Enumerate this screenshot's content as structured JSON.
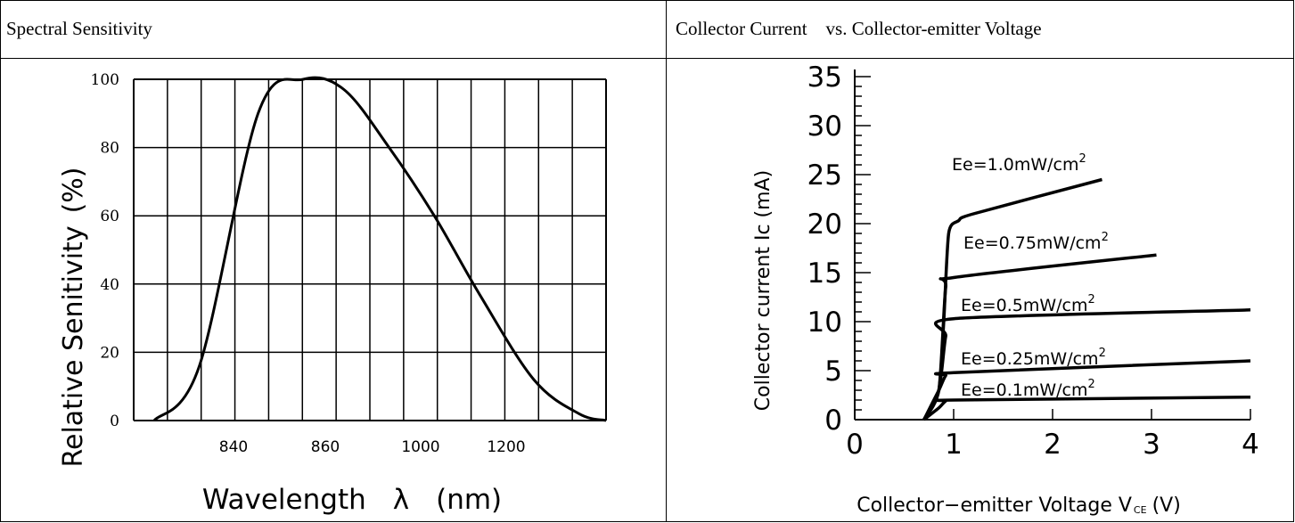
{
  "chart_data": [
    {
      "type": "line",
      "title": "Spectral Sensitivity",
      "xlabel": "Wavelength",
      "xlabel_symbol": "λ",
      "xlabel_unit": "(nm)",
      "ylabel": "Relative Senitivity",
      "ylabel_unit": "(%)",
      "ylim": [
        0,
        100
      ],
      "y_ticks": [
        0,
        20,
        40,
        60,
        80,
        100
      ],
      "x_tick_labels": [
        "840",
        "860",
        "1000",
        "1200"
      ],
      "grid": true,
      "series": [
        {
          "x": [
            0.0,
            0.1,
            0.23,
            0.33,
            0.42,
            0.52,
            0.62,
            0.72,
            0.84,
            0.94,
            1.0
          ],
          "y": [
            0,
            16,
            90,
            100,
            97,
            80,
            60,
            37,
            12,
            2,
            0
          ]
        }
      ]
    },
    {
      "type": "line",
      "title": "Collector Current    vs. Collector-emitter Voltage",
      "xlabel": "Collector−emitter Voltage V",
      "xlabel_sub": "CE",
      "xlabel_unit": "(V)",
      "ylabel": "Collector current Ic (mA)",
      "xlim": [
        0,
        4
      ],
      "ylim": [
        0,
        35
      ],
      "x_ticks": [
        0,
        1,
        2,
        3,
        4
      ],
      "y_ticks": [
        0,
        5,
        10,
        15,
        20,
        25,
        30,
        35
      ],
      "series": [
        {
          "name": "Ee=1.0mW/cm",
          "x": [
            0.7,
            0.85,
            0.9,
            0.95,
            1.05,
            1.2,
            2.5
          ],
          "y": [
            0,
            3,
            10,
            19,
            20.3,
            21,
            24.5
          ]
        },
        {
          "name": "Ee=0.75mW/cm",
          "x": [
            0.7,
            0.85,
            0.92,
            1.0,
            3.05
          ],
          "y": [
            0,
            3,
            13.5,
            14.5,
            16.8
          ]
        },
        {
          "name": "Ee=0.5mW/cm",
          "x": [
            0.7,
            0.85,
            0.92,
            1.0,
            4.0
          ],
          "y": [
            0,
            3,
            8.5,
            10.3,
            11.2
          ]
        },
        {
          "name": "Ee=0.25mW/cm",
          "x": [
            0.7,
            0.85,
            0.92,
            1.0,
            4.0
          ],
          "y": [
            0,
            3,
            4.5,
            4.8,
            6.0
          ]
        },
        {
          "name": "Ee=0.1mW/cm",
          "x": [
            0.7,
            0.85,
            0.92,
            1.0,
            4.0
          ],
          "y": [
            0,
            1.2,
            1.9,
            2.0,
            2.3
          ]
        }
      ],
      "superscript": "2"
    }
  ]
}
